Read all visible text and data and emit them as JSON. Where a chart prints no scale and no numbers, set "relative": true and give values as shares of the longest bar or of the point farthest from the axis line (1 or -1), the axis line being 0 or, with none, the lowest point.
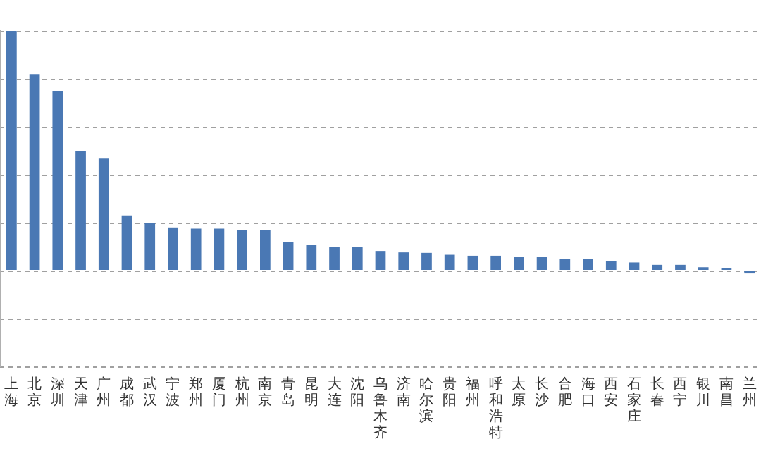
{
  "chart_data": {
    "type": "bar",
    "relative": true,
    "grid": "y",
    "color": "#4a78b4",
    "categories": [
      "上海",
      "北京",
      "深圳",
      "天津",
      "广州",
      "成都",
      "武汉",
      "宁波",
      "郑州",
      "厦门",
      "杭州",
      "南京",
      "青岛",
      "昆明",
      "大连",
      "沈阳",
      "乌鲁木齐",
      "济南",
      "哈尔滨",
      "贵阳",
      "福州",
      "呼和浩特",
      "太原",
      "长沙",
      "合肥",
      "海口",
      "西安",
      "石家庄",
      "长春",
      "西宁",
      "银川",
      "南昌",
      "兰州"
    ],
    "values": [
      1.0,
      0.82,
      0.75,
      0.5,
      0.47,
      0.23,
      0.2,
      0.18,
      0.175,
      0.175,
      0.17,
      0.17,
      0.12,
      0.107,
      0.097,
      0.097,
      0.082,
      0.076,
      0.074,
      0.066,
      0.062,
      0.062,
      0.056,
      0.056,
      0.05,
      0.05,
      0.04,
      0.034,
      0.024,
      0.024,
      0.014,
      0.004,
      -0.012
    ]
  }
}
